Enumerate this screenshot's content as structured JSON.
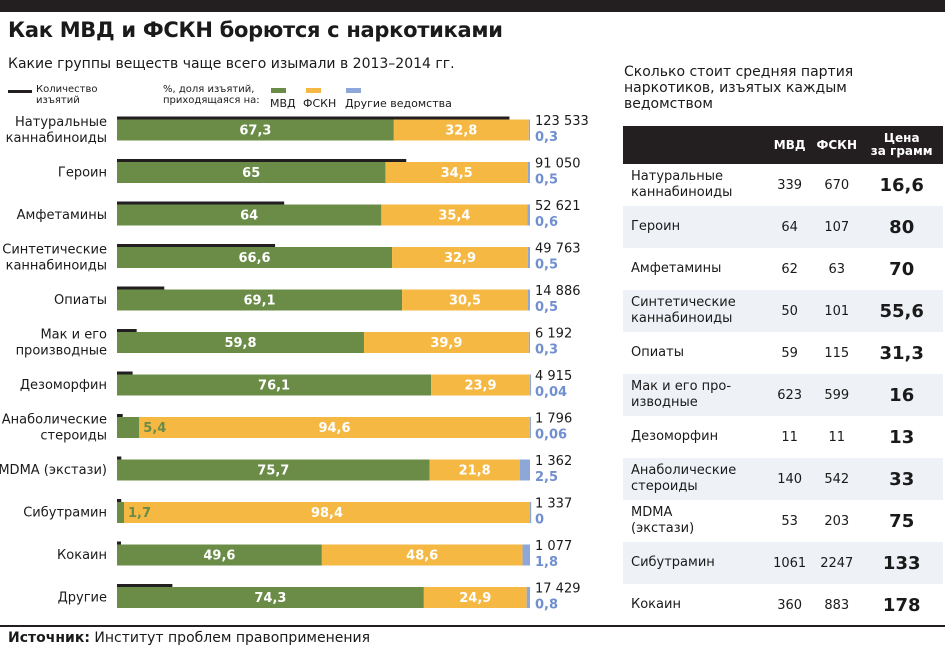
{
  "title": "Как МВД и ФСКН борются с наркотиками",
  "subtitle": "Какие группы веществ чаще всего изымали в 2013–2014 гг.",
  "legend": {
    "count_label": "Количество изъятий",
    "pct_label": "%, доля изъятий, приходящаяся на:",
    "mvd": "МВД",
    "fskn": "ФСКН",
    "other": "Другие ведомства"
  },
  "colors": {
    "mvd": "#6b8c47",
    "fskn": "#f5b843",
    "other": "#8ea7d9",
    "line": "#231f20"
  },
  "chart_data": {
    "type": "bar",
    "stacked": true,
    "orientation": "horizontal",
    "categories": [
      "Натуральные каннабиноиды",
      "Героин",
      "Амфетамины",
      "Синтетические каннабиноиды",
      "Опиаты",
      "Мак и его производные",
      "Дезоморфин",
      "Анаболические стероиды",
      "MDMA (экстази)",
      "Сибутрамин",
      "Кокаин",
      "Другие"
    ],
    "category_lines": [
      [
        "Натуральные",
        "каннабиноиды"
      ],
      [
        "Героин"
      ],
      [
        "Амфетамины"
      ],
      [
        "Синтетические",
        "каннабиноиды"
      ],
      [
        "Опиаты"
      ],
      [
        "Мак и его",
        "производные"
      ],
      [
        "Дезоморфин"
      ],
      [
        "Анаболические",
        "стероиды"
      ],
      [
        "MDMA (экстази)"
      ],
      [
        "Сибутрамин"
      ],
      [
        "Кокаин"
      ],
      [
        "Другие"
      ]
    ],
    "series": [
      {
        "name": "МВД",
        "values": [
          67.3,
          65,
          64,
          66.6,
          69.1,
          59.8,
          76.1,
          5.4,
          75.7,
          1.7,
          49.6,
          74.3
        ],
        "labels": [
          "67,3",
          "65",
          "64",
          "66,6",
          "69,1",
          "59,8",
          "76,1",
          "5,4",
          "75,7",
          "1,7",
          "49,6",
          "74,3"
        ]
      },
      {
        "name": "ФСКН",
        "values": [
          32.8,
          34.5,
          35.4,
          32.9,
          30.5,
          39.9,
          23.9,
          94.6,
          21.8,
          98.4,
          48.6,
          24.9
        ],
        "labels": [
          "32,8",
          "34,5",
          "35,4",
          "32,9",
          "30,5",
          "39,9",
          "23,9",
          "94,6",
          "21,8",
          "98,4",
          "48,6",
          "24,9"
        ]
      },
      {
        "name": "Другие ведомства",
        "values": [
          0.3,
          0.5,
          0.6,
          0.5,
          0.5,
          0.3,
          0.04,
          0.06,
          2.5,
          0,
          1.8,
          0.8
        ],
        "labels": [
          "0,3",
          "0,5",
          "0,6",
          "0,5",
          "0,5",
          "0,3",
          "0,04",
          "0,06",
          "2,5",
          "0",
          "1,8",
          "0,8"
        ]
      }
    ],
    "counts": [
      123533,
      91050,
      52621,
      49763,
      14886,
      6192,
      4915,
      1796,
      1362,
      1337,
      1077,
      17429
    ],
    "count_labels": [
      "123 533",
      "91 050",
      "52 621",
      "49 763",
      "14 886",
      "6 192",
      "4 915",
      "1 796",
      "1 362",
      "1 337",
      "1 077",
      "17 429"
    ],
    "xlim": [
      0,
      100
    ]
  },
  "table": {
    "title": "Сколько стоит средняя партия наркотиков, изъятых каждым ведомством",
    "headers": {
      "name": "",
      "mvd": "МВД",
      "fskn": "ФСКН",
      "price_1": "Цена",
      "price_2": "за грамм"
    },
    "rows": [
      {
        "l1": "Натуральные",
        "l2": "каннабиноиды",
        "mvd": "339",
        "fskn": "670",
        "price": "16,6"
      },
      {
        "l1": "Героин",
        "l2": "",
        "mvd": "64",
        "fskn": "107",
        "price": "80"
      },
      {
        "l1": "Амфетамины",
        "l2": "",
        "mvd": "62",
        "fskn": "63",
        "price": "70"
      },
      {
        "l1": "Синтетические",
        "l2": "каннабиноиды",
        "mvd": "50",
        "fskn": "101",
        "price": "55,6"
      },
      {
        "l1": "Опиаты",
        "l2": "",
        "mvd": "59",
        "fskn": "115",
        "price": "31,3"
      },
      {
        "l1": "Мак и его про-",
        "l2": "изводные",
        "mvd": "623",
        "fskn": "599",
        "price": "16"
      },
      {
        "l1": "Дезоморфин",
        "l2": "",
        "mvd": "11",
        "fskn": "11",
        "price": "13"
      },
      {
        "l1": "Анаболические",
        "l2": "стероиды",
        "mvd": "140",
        "fskn": "542",
        "price": "33"
      },
      {
        "l1": "MDMA",
        "l2": "(экстази)",
        "mvd": "53",
        "fskn": "203",
        "price": "75"
      },
      {
        "l1": "Сибутрамин",
        "l2": "",
        "mvd": "1061",
        "fskn": "2247",
        "price": "133"
      },
      {
        "l1": "Кокаин",
        "l2": "",
        "mvd": "360",
        "fskn": "883",
        "price": "178"
      }
    ]
  },
  "source": {
    "label": "Источник:",
    "text": " Институт проблем правоприменения"
  }
}
